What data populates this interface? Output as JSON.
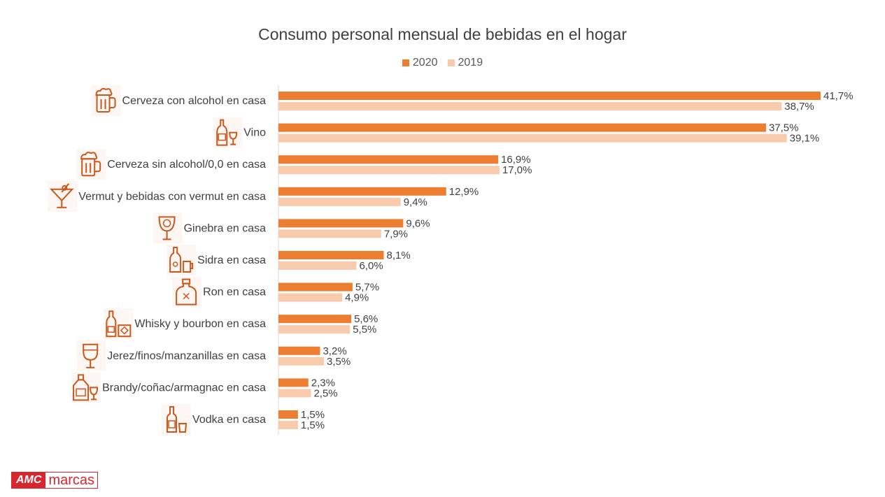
{
  "title": "Consumo personal mensual de bebidas en el hogar",
  "colors": {
    "s2020": "#ed7d31",
    "s2019": "#f8cbad",
    "icon": "#c9581c"
  },
  "legend": [
    {
      "label": "2020",
      "color": "#ed7d31"
    },
    {
      "label": "2019",
      "color": "#f8cbad"
    }
  ],
  "logo": {
    "amc": "AMC",
    "marcas": "marcas"
  },
  "chart_data": {
    "type": "bar",
    "orientation": "horizontal",
    "title": "Consumo personal mensual de bebidas en el hogar",
    "categories": [
      "Cerveza con alcohol en casa",
      "Vino",
      "Cerveza sin alcohol/0,0 en casa",
      "Vermut y bebidas con vermut en casa",
      "Ginebra en casa",
      "Sidra en casa",
      "Ron en casa",
      "Whisky y bourbon en casa",
      "Jerez/finos/manzanillas en casa",
      "Brandy/coñac/armagnac en casa",
      "Vodka en casa"
    ],
    "icons": [
      "beer-mug-icon",
      "wine-bottle-glass-icon",
      "beer-mug-icon",
      "cocktail-glass-icon",
      "gin-glass-icon",
      "cider-bottle-icon",
      "rum-bottle-icon",
      "whisky-bottle-icon",
      "sherry-glass-icon",
      "brandy-bottle-icon",
      "vodka-bottle-icon"
    ],
    "series": [
      {
        "name": "2020",
        "values": [
          41.7,
          37.5,
          16.9,
          12.9,
          9.6,
          8.1,
          5.7,
          5.6,
          3.2,
          2.3,
          1.5
        ],
        "labels": [
          "41,7%",
          "37,5%",
          "16,9%",
          "12,9%",
          "9,6%",
          "8,1%",
          "5,7%",
          "5,6%",
          "3,2%",
          "2,3%",
          "1,5%"
        ]
      },
      {
        "name": "2019",
        "values": [
          38.7,
          39.1,
          17.0,
          9.4,
          7.9,
          6.0,
          4.9,
          5.5,
          3.5,
          2.5,
          1.5
        ],
        "labels": [
          "38,7%",
          "39,1%",
          "17,0%",
          "9,4%",
          "7,9%",
          "6,0%",
          "4,9%",
          "5,5%",
          "3,5%",
          "2,5%",
          "1,5%"
        ]
      }
    ],
    "xlim": [
      0,
      41.7
    ],
    "legend_position": "top",
    "grid": false
  }
}
